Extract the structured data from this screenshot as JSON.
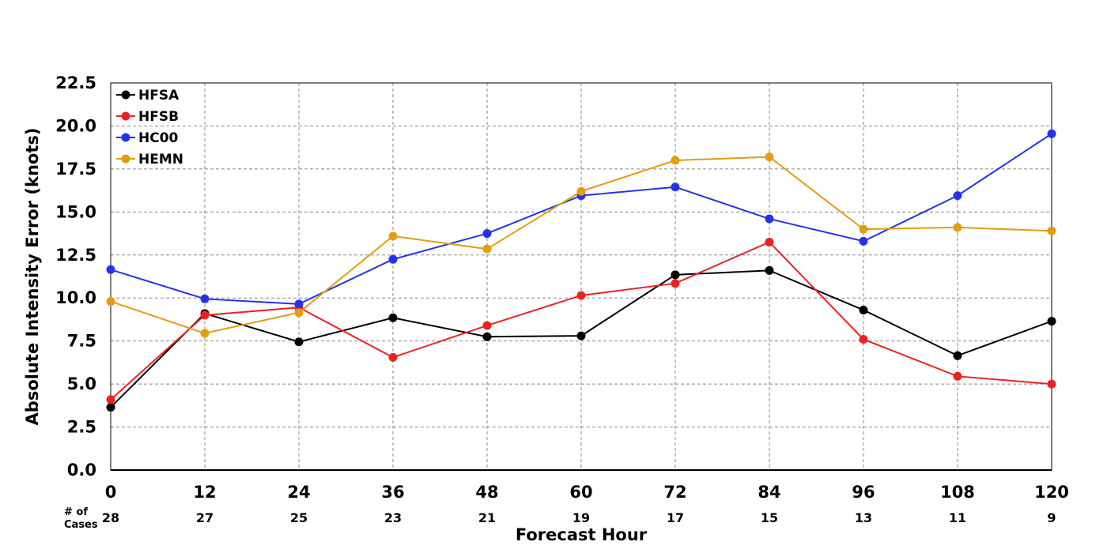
{
  "chart_data": {
    "type": "line",
    "xlabel": "Forecast Hour",
    "ylabel": "Absolute Intensity Error (knots)",
    "x": [
      0,
      12,
      24,
      36,
      48,
      60,
      72,
      84,
      96,
      108,
      120
    ],
    "x_tick_labels": [
      "0",
      "12",
      "24",
      "36",
      "48",
      "60",
      "72",
      "84",
      "96",
      "108",
      "120"
    ],
    "y_tick_labels": [
      "0.0",
      "2.5",
      "5.0",
      "7.5",
      "10.0",
      "12.5",
      "15.0",
      "17.5",
      "20.0",
      "22.5"
    ],
    "xlim": [
      0,
      120
    ],
    "ylim": [
      0,
      22.5
    ],
    "grid": true,
    "legend_position": "top-left",
    "cases_label_line1": "# of",
    "cases_label_line2": "Cases",
    "cases": [
      "28",
      "27",
      "25",
      "23",
      "21",
      "19",
      "17",
      "15",
      "13",
      "11",
      "9"
    ],
    "series": [
      {
        "name": "HFSA",
        "color": "#000000",
        "values": [
          3.65,
          9.1,
          7.45,
          8.85,
          7.75,
          7.8,
          11.35,
          11.6,
          9.3,
          6.65,
          8.65
        ]
      },
      {
        "name": "HFSB",
        "color": "#ee2222",
        "values": [
          4.1,
          9.0,
          9.45,
          6.55,
          8.4,
          10.15,
          10.85,
          13.25,
          7.6,
          5.45,
          5.0
        ]
      },
      {
        "name": "HC00",
        "color": "#2233ee",
        "values": [
          11.65,
          9.95,
          9.65,
          12.25,
          13.75,
          15.95,
          16.45,
          14.6,
          13.3,
          15.95,
          19.55
        ]
      },
      {
        "name": "HEMN",
        "color": "#e39d0e",
        "values": [
          9.8,
          7.95,
          9.15,
          13.6,
          12.85,
          16.2,
          18.0,
          18.2,
          14.0,
          14.1,
          13.9
        ]
      }
    ]
  }
}
